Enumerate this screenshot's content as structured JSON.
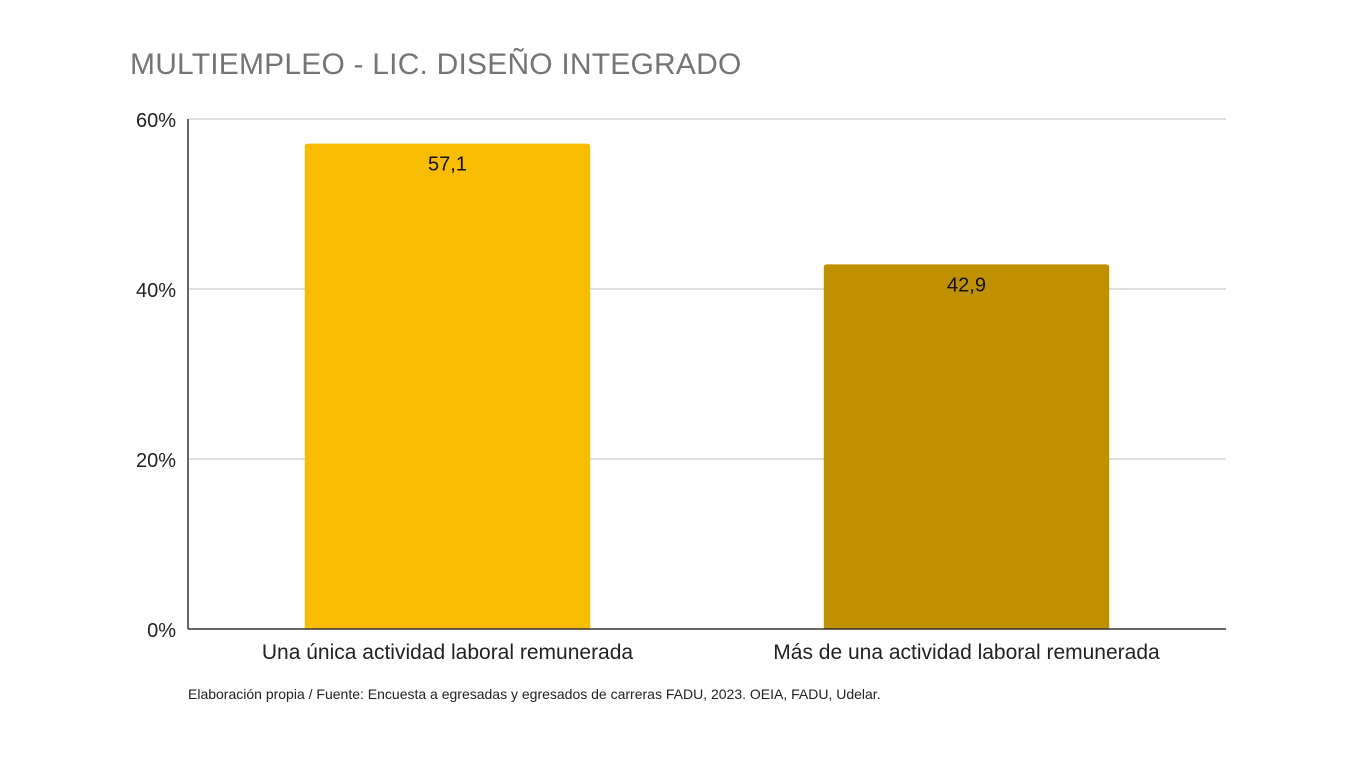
{
  "chart_data": {
    "type": "bar",
    "title": "MULTIEMPLEO - LIC. DISEÑO INTEGRADO",
    "categories": [
      "Una única actividad laboral remunerada",
      "Más de una actividad laboral remunerada"
    ],
    "values": [
      57.1,
      42.9
    ],
    "data_labels": [
      "57,1",
      "42,9"
    ],
    "colors": [
      "#F8BD03",
      "#BF9000"
    ],
    "ylim": [
      0,
      60
    ],
    "yticks": [
      0,
      20,
      40,
      60
    ],
    "ytick_labels": [
      "0%",
      "20%",
      "40%",
      "60%"
    ],
    "grid": true,
    "legend": "none",
    "source": "Elaboración propia / Fuente: Encuesta a egresadas y egresados de carreras FADU, 2023. OEIA, FADU, Udelar."
  }
}
